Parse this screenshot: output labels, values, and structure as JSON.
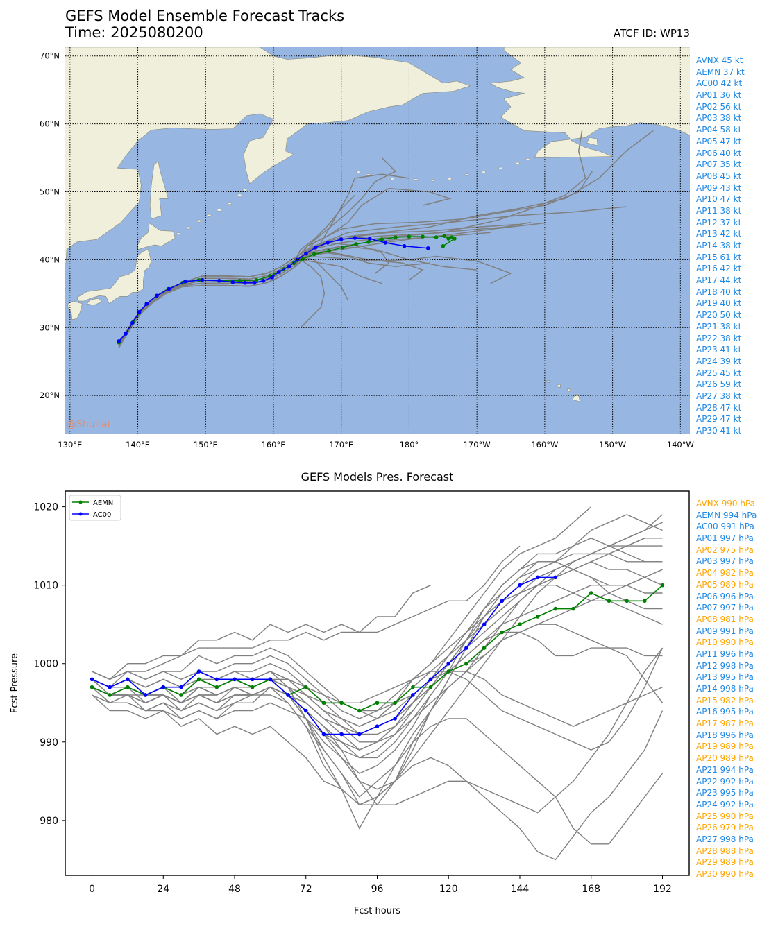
{
  "header": {
    "title": "GEFS Model Ensemble Forecast Tracks",
    "time_label": "Time: 2025080200",
    "atcf_label": "ATCF ID: WP13",
    "watermark": "@Shuitai"
  },
  "map": {
    "lon_labels": [
      "130°E",
      "140°E",
      "150°E",
      "160°E",
      "170°E",
      "180°",
      "170°W",
      "160°W",
      "150°W",
      "140°W"
    ],
    "lat_labels": [
      "70°N",
      "60°N",
      "50°N",
      "40°N",
      "30°N",
      "20°N"
    ],
    "colors": {
      "ocean": "#97b6e1",
      "land": "#efefdb",
      "coast": "#8a8a7a",
      "ensemble": "#808080",
      "aemn": "#008000",
      "ac00": "#0000ff"
    },
    "ensemble_tracks_note": "30 gray ensemble member tracks",
    "aemn_track": [
      [
        137.2,
        27.8
      ],
      [
        138.3,
        29.2
      ],
      [
        139.3,
        30.8
      ],
      [
        140.2,
        32.2
      ],
      [
        141.3,
        33.5
      ],
      [
        142.8,
        34.7
      ],
      [
        144.5,
        35.7
      ],
      [
        146.6,
        36.6
      ],
      [
        149,
        37
      ],
      [
        152,
        36.9
      ],
      [
        155,
        36.9
      ],
      [
        157.5,
        37
      ],
      [
        159.5,
        37.6
      ],
      [
        161.5,
        38.6
      ],
      [
        163,
        39.5
      ],
      [
        164.3,
        40.1
      ],
      [
        166,
        40.8
      ],
      [
        168.2,
        41.3
      ],
      [
        170.2,
        41.8
      ],
      [
        172.2,
        42.3
      ],
      [
        174,
        42.6
      ],
      [
        176,
        43
      ],
      [
        178,
        43.3
      ],
      [
        180,
        43.4
      ],
      [
        182,
        43.4
      ],
      [
        184,
        43.3
      ],
      [
        185.2,
        43.5
      ],
      [
        185.8,
        43.1
      ],
      [
        186.3,
        43.3
      ],
      [
        186.7,
        43.1
      ],
      [
        185,
        42
      ]
    ],
    "ac00_track": [
      [
        137.2,
        28
      ],
      [
        138.2,
        29.1
      ],
      [
        139.2,
        30.7
      ],
      [
        140.2,
        32.3
      ],
      [
        141.3,
        33.5
      ],
      [
        142.8,
        34.7
      ],
      [
        144.6,
        35.7
      ],
      [
        147,
        36.8
      ],
      [
        149.5,
        37
      ],
      [
        152,
        36.9
      ],
      [
        154,
        36.7
      ],
      [
        155.8,
        36.6
      ],
      [
        157.2,
        36.6
      ],
      [
        158.5,
        36.9
      ],
      [
        159.8,
        37.4
      ],
      [
        160.8,
        38.2
      ],
      [
        162.3,
        39
      ],
      [
        163.5,
        40
      ],
      [
        164.8,
        40.9
      ],
      [
        166.2,
        41.8
      ],
      [
        168,
        42.5
      ],
      [
        170,
        43
      ],
      [
        172,
        43.2
      ],
      [
        174.2,
        43.1
      ],
      [
        176.5,
        42.5
      ],
      [
        179.3,
        42
      ],
      [
        182.8,
        41.7
      ]
    ]
  },
  "side_track_labels": [
    {
      "label": "AVNX 45 kt",
      "color": "#1e88e5"
    },
    {
      "label": "AEMN 37 kt",
      "color": "#1e88e5"
    },
    {
      "label": "AC00 42 kt",
      "color": "#1e88e5"
    },
    {
      "label": "AP01 36 kt",
      "color": "#1e88e5"
    },
    {
      "label": "AP02 56 kt",
      "color": "#1e88e5"
    },
    {
      "label": "AP03 38 kt",
      "color": "#1e88e5"
    },
    {
      "label": "AP04 58 kt",
      "color": "#1e88e5"
    },
    {
      "label": "AP05 47 kt",
      "color": "#1e88e5"
    },
    {
      "label": "AP06 40 kt",
      "color": "#1e88e5"
    },
    {
      "label": "AP07 35 kt",
      "color": "#1e88e5"
    },
    {
      "label": "AP08 45 kt",
      "color": "#1e88e5"
    },
    {
      "label": "AP09 43 kt",
      "color": "#1e88e5"
    },
    {
      "label": "AP10 47 kt",
      "color": "#1e88e5"
    },
    {
      "label": "AP11 38 kt",
      "color": "#1e88e5"
    },
    {
      "label": "AP12 37 kt",
      "color": "#1e88e5"
    },
    {
      "label": "AP13 42 kt",
      "color": "#1e88e5"
    },
    {
      "label": "AP14 38 kt",
      "color": "#1e88e5"
    },
    {
      "label": "AP15 61 kt",
      "color": "#1e88e5"
    },
    {
      "label": "AP16 42 kt",
      "color": "#1e88e5"
    },
    {
      "label": "AP17 44 kt",
      "color": "#1e88e5"
    },
    {
      "label": "AP18 40 kt",
      "color": "#1e88e5"
    },
    {
      "label": "AP19 40 kt",
      "color": "#1e88e5"
    },
    {
      "label": "AP20 50 kt",
      "color": "#1e88e5"
    },
    {
      "label": "AP21 38 kt",
      "color": "#1e88e5"
    },
    {
      "label": "AP22 38 kt",
      "color": "#1e88e5"
    },
    {
      "label": "AP23 41 kt",
      "color": "#1e88e5"
    },
    {
      "label": "AP24 39 kt",
      "color": "#1e88e5"
    },
    {
      "label": "AP25 45 kt",
      "color": "#1e88e5"
    },
    {
      "label": "AP26 59 kt",
      "color": "#1e88e5"
    },
    {
      "label": "AP27 38 kt",
      "color": "#1e88e5"
    },
    {
      "label": "AP28 47 kt",
      "color": "#1e88e5"
    },
    {
      "label": "AP29 47 kt",
      "color": "#1e88e5"
    },
    {
      "label": "AP30 41 kt",
      "color": "#1e88e5"
    }
  ],
  "side_pressure_labels": [
    {
      "label": "AVNX 990 hPa",
      "color": "#ffa500"
    },
    {
      "label": "AEMN 994 hPa",
      "color": "#1e88e5"
    },
    {
      "label": "AC00 991 hPa",
      "color": "#1e88e5"
    },
    {
      "label": "AP01 997 hPa",
      "color": "#1e88e5"
    },
    {
      "label": "AP02 975 hPa",
      "color": "#ffa500"
    },
    {
      "label": "AP03 997 hPa",
      "color": "#1e88e5"
    },
    {
      "label": "AP04 982 hPa",
      "color": "#ffa500"
    },
    {
      "label": "AP05 989 hPa",
      "color": "#ffa500"
    },
    {
      "label": "AP06 996 hPa",
      "color": "#1e88e5"
    },
    {
      "label": "AP07 997 hPa",
      "color": "#1e88e5"
    },
    {
      "label": "AP08 981 hPa",
      "color": "#ffa500"
    },
    {
      "label": "AP09 991 hPa",
      "color": "#1e88e5"
    },
    {
      "label": "AP10 990 hPa",
      "color": "#ffa500"
    },
    {
      "label": "AP11 996 hPa",
      "color": "#1e88e5"
    },
    {
      "label": "AP12 998 hPa",
      "color": "#1e88e5"
    },
    {
      "label": "AP13 995 hPa",
      "color": "#1e88e5"
    },
    {
      "label": "AP14 998 hPa",
      "color": "#1e88e5"
    },
    {
      "label": "AP15 982 hPa",
      "color": "#ffa500"
    },
    {
      "label": "AP16 995 hPa",
      "color": "#1e88e5"
    },
    {
      "label": "AP17 987 hPa",
      "color": "#ffa500"
    },
    {
      "label": "AP18 996 hPa",
      "color": "#1e88e5"
    },
    {
      "label": "AP19 989 hPa",
      "color": "#ffa500"
    },
    {
      "label": "AP20 989 hPa",
      "color": "#ffa500"
    },
    {
      "label": "AP21 994 hPa",
      "color": "#1e88e5"
    },
    {
      "label": "AP22 992 hPa",
      "color": "#1e88e5"
    },
    {
      "label": "AP23 995 hPa",
      "color": "#1e88e5"
    },
    {
      "label": "AP24 992 hPa",
      "color": "#1e88e5"
    },
    {
      "label": "AP25 990 hPa",
      "color": "#ffa500"
    },
    {
      "label": "AP26 979 hPa",
      "color": "#ffa500"
    },
    {
      "label": "AP27 998 hPa",
      "color": "#1e88e5"
    },
    {
      "label": "AP28 988 hPa",
      "color": "#ffa500"
    },
    {
      "label": "AP29 989 hPa",
      "color": "#ffa500"
    },
    {
      "label": "AP30 990 hPa",
      "color": "#ffa500"
    }
  ],
  "chart_data": {
    "type": "line",
    "title": "GEFS Models Pres. Forecast",
    "xlabel": "Fcst hours",
    "ylabel": "Fcst Pressure",
    "xlim": [
      -9,
      201
    ],
    "ylim": [
      973,
      1022
    ],
    "xticks": [
      0,
      24,
      48,
      72,
      96,
      120,
      144,
      168,
      192
    ],
    "yticks": [
      980,
      990,
      1000,
      1010,
      1020
    ],
    "legend_position": "top-left",
    "series": [
      {
        "name": "AEMN",
        "color": "#008000",
        "marker": true,
        "x": [
          0,
          6,
          12,
          18,
          24,
          30,
          36,
          42,
          48,
          54,
          60,
          66,
          72,
          78,
          84,
          90,
          96,
          102,
          108,
          114,
          120,
          126,
          132,
          138,
          144,
          150,
          156,
          162,
          168,
          174,
          180,
          186,
          192
        ],
        "values": [
          997,
          996,
          997,
          996,
          997,
          996,
          998,
          997,
          998,
          997,
          998,
          996,
          997,
          995,
          995,
          994,
          995,
          995,
          997,
          997,
          999,
          1000,
          1002,
          1004,
          1005,
          1006,
          1007,
          1007,
          1009,
          1008,
          1008,
          1008,
          1010
        ]
      },
      {
        "name": "AC00",
        "color": "#0000ff",
        "marker": true,
        "x": [
          0,
          6,
          12,
          18,
          24,
          30,
          36,
          42,
          48,
          54,
          60,
          66,
          72,
          78,
          84,
          90,
          96,
          102,
          108,
          114,
          120,
          126,
          132,
          138,
          144,
          150,
          156
        ],
        "values": [
          998,
          997,
          998,
          996,
          997,
          997,
          999,
          998,
          998,
          998,
          998,
          996,
          994,
          991,
          991,
          991,
          992,
          993,
          996,
          998,
          1000,
          1002,
          1005,
          1008,
          1010,
          1011,
          1011
        ]
      }
    ],
    "ensemble_members_note": "gray lines show remaining ensemble members"
  }
}
